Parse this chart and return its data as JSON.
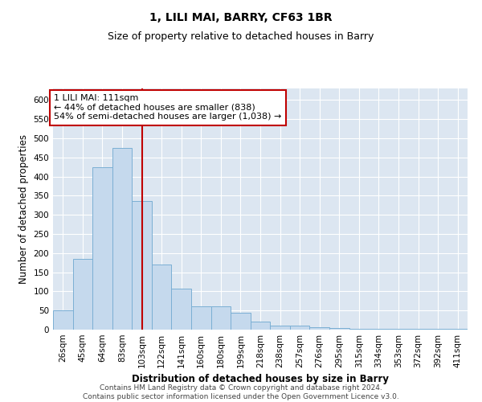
{
  "title": "1, LILI MAI, BARRY, CF63 1BR",
  "subtitle": "Size of property relative to detached houses in Barry",
  "xlabel": "Distribution of detached houses by size in Barry",
  "ylabel": "Number of detached properties",
  "footer": "Contains HM Land Registry data © Crown copyright and database right 2024.\nContains public sector information licensed under the Open Government Licence v3.0.",
  "bar_labels": [
    "26sqm",
    "45sqm",
    "64sqm",
    "83sqm",
    "103sqm",
    "122sqm",
    "141sqm",
    "160sqm",
    "180sqm",
    "199sqm",
    "218sqm",
    "238sqm",
    "257sqm",
    "276sqm",
    "295sqm",
    "315sqm",
    "334sqm",
    "353sqm",
    "372sqm",
    "392sqm",
    "411sqm"
  ],
  "bar_values": [
    50,
    185,
    425,
    475,
    335,
    170,
    108,
    60,
    60,
    45,
    22,
    11,
    11,
    6,
    5,
    3,
    3,
    2,
    2,
    2,
    2
  ],
  "bar_color": "#c5d9ed",
  "bar_edge_color": "#7bafd4",
  "background_color": "#dce6f1",
  "annotation_text_line1": "1 LILI MAI: 111sqm",
  "annotation_text_line2": "← 44% of detached houses are smaller (838)",
  "annotation_text_line3": "54% of semi-detached houses are larger (1,038) →",
  "annotation_box_color": "#ffffff",
  "annotation_box_edge_color": "#c00000",
  "ylim": [
    0,
    630
  ],
  "yticks": [
    0,
    50,
    100,
    150,
    200,
    250,
    300,
    350,
    400,
    450,
    500,
    550,
    600
  ],
  "vline_color": "#c00000",
  "vline_x_index": 4,
  "grid_color": "#ffffff",
  "title_fontsize": 10,
  "subtitle_fontsize": 9,
  "axis_label_fontsize": 8.5,
  "tick_fontsize": 7.5,
  "footer_fontsize": 6.5
}
